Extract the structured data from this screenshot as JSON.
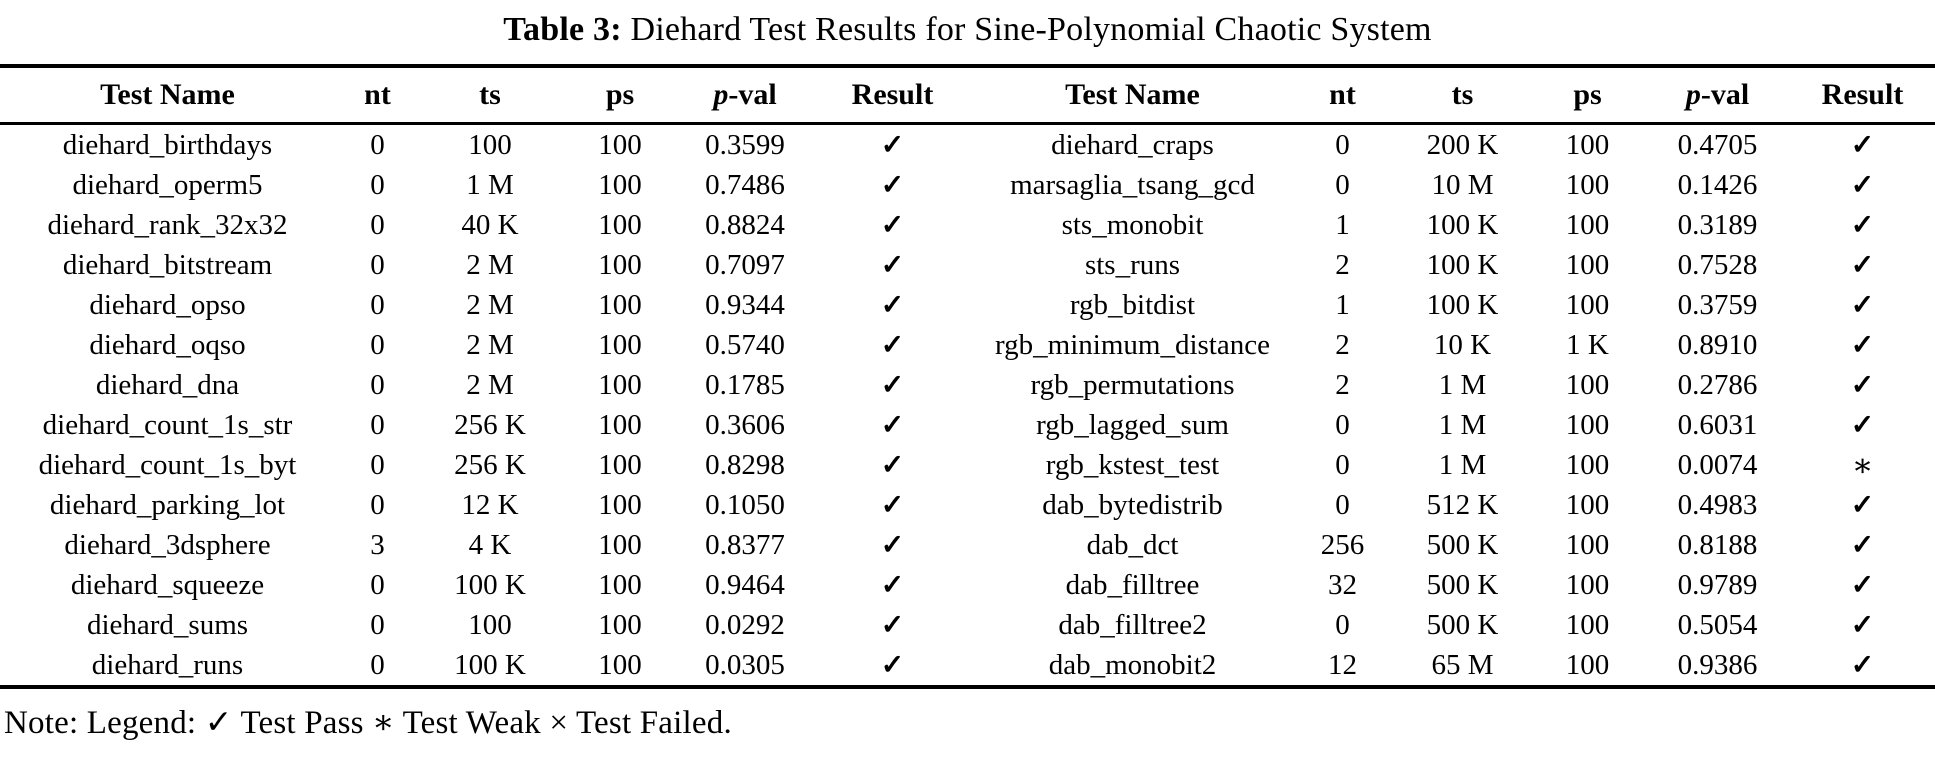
{
  "title": {
    "label": "Table 3:",
    "text": "Diehard Test Results for Sine-Polynomial Chaotic System"
  },
  "header": {
    "test_name": "Test Name",
    "nt": "nt",
    "ts": "ts",
    "ps": "ps",
    "pval": {
      "p": "p",
      "rest": "-val"
    },
    "result": "Result"
  },
  "symbols": {
    "pass": "✓",
    "weak": "∗",
    "fail": "×"
  },
  "note": "Note: Legend: ✓ Test Pass ∗ Test Weak × Test Failed.",
  "table": {
    "left_rows": [
      {
        "name": "diehard_birthdays",
        "nt": "0",
        "ts": "100",
        "ps": "100",
        "pval": "0.3599",
        "result": "pass"
      },
      {
        "name": "diehard_operm5",
        "nt": "0",
        "ts": "1 M",
        "ps": "100",
        "pval": "0.7486",
        "result": "pass"
      },
      {
        "name": "diehard_rank_32x32",
        "nt": "0",
        "ts": "40 K",
        "ps": "100",
        "pval": "0.8824",
        "result": "pass"
      },
      {
        "name": "diehard_bitstream",
        "nt": "0",
        "ts": "2 M",
        "ps": "100",
        "pval": "0.7097",
        "result": "pass"
      },
      {
        "name": "diehard_opso",
        "nt": "0",
        "ts": "2 M",
        "ps": "100",
        "pval": "0.9344",
        "result": "pass"
      },
      {
        "name": "diehard_oqso",
        "nt": "0",
        "ts": "2 M",
        "ps": "100",
        "pval": "0.5740",
        "result": "pass"
      },
      {
        "name": "diehard_dna",
        "nt": "0",
        "ts": "2 M",
        "ps": "100",
        "pval": "0.1785",
        "result": "pass"
      },
      {
        "name": "diehard_count_1s_str",
        "nt": "0",
        "ts": "256 K",
        "ps": "100",
        "pval": "0.3606",
        "result": "pass"
      },
      {
        "name": "diehard_count_1s_byt",
        "nt": "0",
        "ts": "256 K",
        "ps": "100",
        "pval": "0.8298",
        "result": "pass"
      },
      {
        "name": "diehard_parking_lot",
        "nt": "0",
        "ts": "12 K",
        "ps": "100",
        "pval": "0.1050",
        "result": "pass"
      },
      {
        "name": "diehard_3dsphere",
        "nt": "3",
        "ts": "4 K",
        "ps": "100",
        "pval": "0.8377",
        "result": "pass"
      },
      {
        "name": "diehard_squeeze",
        "nt": "0",
        "ts": "100 K",
        "ps": "100",
        "pval": "0.9464",
        "result": "pass"
      },
      {
        "name": "diehard_sums",
        "nt": "0",
        "ts": "100",
        "ps": "100",
        "pval": "0.0292",
        "result": "pass"
      },
      {
        "name": "diehard_runs",
        "nt": "0",
        "ts": "100 K",
        "ps": "100",
        "pval": "0.0305",
        "result": "pass"
      }
    ],
    "right_rows": [
      {
        "name": "diehard_craps",
        "nt": "0",
        "ts": "200 K",
        "ps": "100",
        "pval": "0.4705",
        "result": "pass"
      },
      {
        "name": "marsaglia_tsang_gcd",
        "nt": "0",
        "ts": "10 M",
        "ps": "100",
        "pval": "0.1426",
        "result": "pass"
      },
      {
        "name": "sts_monobit",
        "nt": "1",
        "ts": "100 K",
        "ps": "100",
        "pval": "0.3189",
        "result": "pass"
      },
      {
        "name": "sts_runs",
        "nt": "2",
        "ts": "100 K",
        "ps": "100",
        "pval": "0.7528",
        "result": "pass"
      },
      {
        "name": "rgb_bitdist",
        "nt": "1",
        "ts": "100 K",
        "ps": "100",
        "pval": "0.3759",
        "result": "pass"
      },
      {
        "name": "rgb_minimum_distance",
        "nt": "2",
        "ts": "10 K",
        "ps": "1 K",
        "pval": "0.8910",
        "result": "pass"
      },
      {
        "name": "rgb_permutations",
        "nt": "2",
        "ts": "1 M",
        "ps": "100",
        "pval": "0.2786",
        "result": "pass"
      },
      {
        "name": "rgb_lagged_sum",
        "nt": "0",
        "ts": "1 M",
        "ps": "100",
        "pval": "0.6031",
        "result": "pass"
      },
      {
        "name": "rgb_kstest_test",
        "nt": "0",
        "ts": "1 M",
        "ps": "100",
        "pval": "0.0074",
        "result": "weak"
      },
      {
        "name": "dab_bytedistrib",
        "nt": "0",
        "ts": "512 K",
        "ps": "100",
        "pval": "0.4983",
        "result": "pass"
      },
      {
        "name": "dab_dct",
        "nt": "256",
        "ts": "500 K",
        "ps": "100",
        "pval": "0.8188",
        "result": "pass"
      },
      {
        "name": "dab_filltree",
        "nt": "32",
        "ts": "500 K",
        "ps": "100",
        "pval": "0.9789",
        "result": "pass"
      },
      {
        "name": "dab_filltree2",
        "nt": "0",
        "ts": "500 K",
        "ps": "100",
        "pval": "0.5054",
        "result": "pass"
      },
      {
        "name": "dab_monobit2",
        "nt": "12",
        "ts": "65 M",
        "ps": "100",
        "pval": "0.9386",
        "result": "pass"
      }
    ]
  }
}
